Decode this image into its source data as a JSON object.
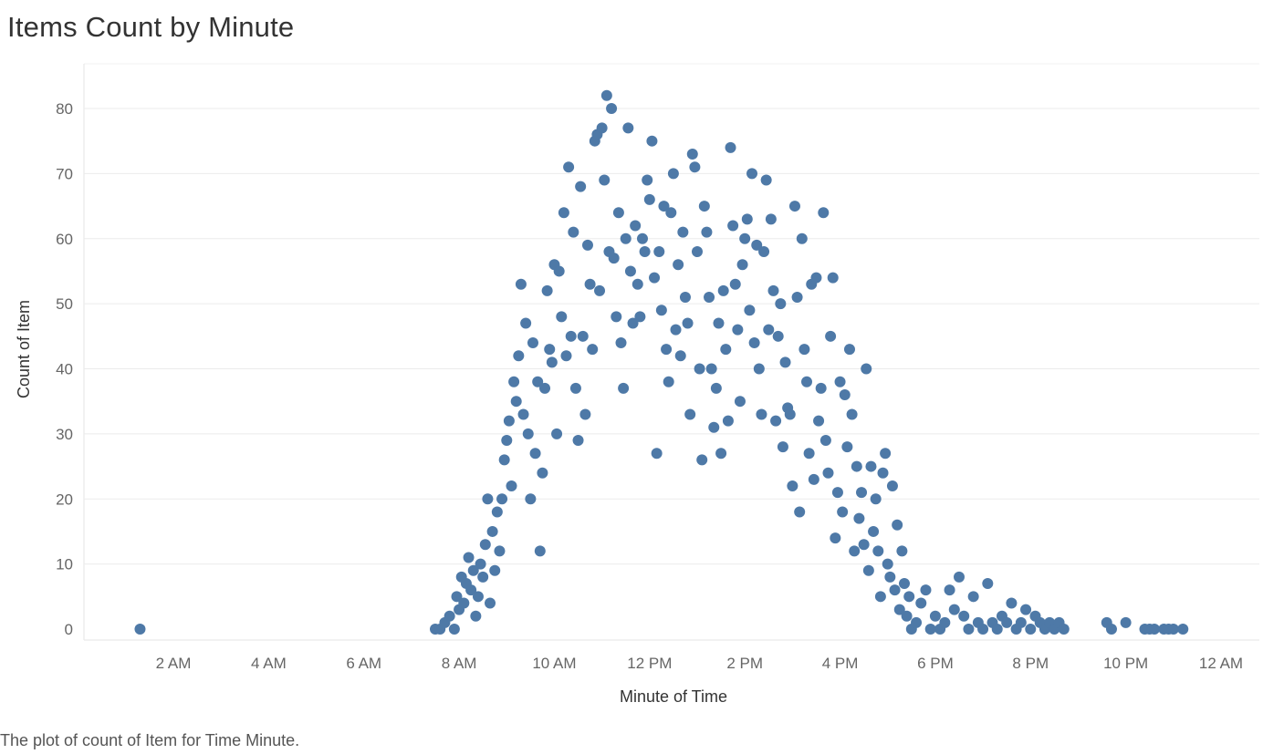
{
  "title": "Items Count by Minute",
  "caption": "The plot of count of Item for Time Minute.",
  "chart_data": {
    "type": "scatter",
    "title": "Items Count by Minute",
    "xlabel": "Minute of Time",
    "ylabel": "Count of Item",
    "x_unit": "hours since midnight",
    "xlim": [
      0,
      24
    ],
    "ylim": [
      0,
      85
    ],
    "x_ticks": [
      {
        "value": 2,
        "label": "2 AM"
      },
      {
        "value": 4,
        "label": "4 AM"
      },
      {
        "value": 6,
        "label": "6 AM"
      },
      {
        "value": 8,
        "label": "8 AM"
      },
      {
        "value": 10,
        "label": "10 AM"
      },
      {
        "value": 12,
        "label": "12 PM"
      },
      {
        "value": 14,
        "label": "2 PM"
      },
      {
        "value": 16,
        "label": "4 PM"
      },
      {
        "value": 18,
        "label": "6 PM"
      },
      {
        "value": 20,
        "label": "8 PM"
      },
      {
        "value": 22,
        "label": "10 PM"
      },
      {
        "value": 24,
        "label": "12 AM"
      }
    ],
    "y_ticks": [
      0,
      10,
      20,
      30,
      40,
      50,
      60,
      70,
      80
    ],
    "grid": "horizontal",
    "legend": "none",
    "marker_color": "#4e79a7",
    "points": [
      [
        1.3,
        0
      ],
      [
        7.5,
        0
      ],
      [
        7.6,
        0
      ],
      [
        7.7,
        1
      ],
      [
        7.8,
        2
      ],
      [
        7.9,
        0
      ],
      [
        7.95,
        5
      ],
      [
        8.0,
        3
      ],
      [
        8.05,
        8
      ],
      [
        8.1,
        4
      ],
      [
        8.15,
        7
      ],
      [
        8.2,
        11
      ],
      [
        8.25,
        6
      ],
      [
        8.3,
        9
      ],
      [
        8.35,
        2
      ],
      [
        8.4,
        5
      ],
      [
        8.45,
        10
      ],
      [
        8.5,
        8
      ],
      [
        8.55,
        13
      ],
      [
        8.6,
        20
      ],
      [
        8.65,
        4
      ],
      [
        8.7,
        15
      ],
      [
        8.75,
        9
      ],
      [
        8.8,
        18
      ],
      [
        8.85,
        12
      ],
      [
        8.9,
        20
      ],
      [
        8.95,
        26
      ],
      [
        9.0,
        29
      ],
      [
        9.05,
        32
      ],
      [
        9.1,
        22
      ],
      [
        9.15,
        38
      ],
      [
        9.2,
        35
      ],
      [
        9.25,
        42
      ],
      [
        9.3,
        53
      ],
      [
        9.35,
        33
      ],
      [
        9.4,
        47
      ],
      [
        9.45,
        30
      ],
      [
        9.5,
        20
      ],
      [
        9.55,
        44
      ],
      [
        9.6,
        27
      ],
      [
        9.65,
        38
      ],
      [
        9.7,
        12
      ],
      [
        9.75,
        24
      ],
      [
        9.8,
        37
      ],
      [
        9.85,
        52
      ],
      [
        9.9,
        43
      ],
      [
        9.95,
        41
      ],
      [
        10.0,
        56
      ],
      [
        10.05,
        30
      ],
      [
        10.1,
        55
      ],
      [
        10.15,
        48
      ],
      [
        10.2,
        64
      ],
      [
        10.25,
        42
      ],
      [
        10.3,
        71
      ],
      [
        10.35,
        45
      ],
      [
        10.4,
        61
      ],
      [
        10.45,
        37
      ],
      [
        10.5,
        29
      ],
      [
        10.55,
        68
      ],
      [
        10.6,
        45
      ],
      [
        10.65,
        33
      ],
      [
        10.7,
        59
      ],
      [
        10.75,
        53
      ],
      [
        10.8,
        43
      ],
      [
        10.85,
        75
      ],
      [
        10.9,
        76
      ],
      [
        10.95,
        52
      ],
      [
        11.0,
        77
      ],
      [
        11.05,
        69
      ],
      [
        11.1,
        82
      ],
      [
        11.15,
        58
      ],
      [
        11.2,
        80
      ],
      [
        11.25,
        57
      ],
      [
        11.3,
        48
      ],
      [
        11.35,
        64
      ],
      [
        11.4,
        44
      ],
      [
        11.45,
        37
      ],
      [
        11.5,
        60
      ],
      [
        11.55,
        77
      ],
      [
        11.6,
        55
      ],
      [
        11.65,
        47
      ],
      [
        11.7,
        62
      ],
      [
        11.75,
        53
      ],
      [
        11.8,
        48
      ],
      [
        11.85,
        60
      ],
      [
        11.9,
        58
      ],
      [
        11.95,
        69
      ],
      [
        12.0,
        66
      ],
      [
        12.05,
        75
      ],
      [
        12.1,
        54
      ],
      [
        12.15,
        27
      ],
      [
        12.2,
        58
      ],
      [
        12.25,
        49
      ],
      [
        12.3,
        65
      ],
      [
        12.35,
        43
      ],
      [
        12.4,
        38
      ],
      [
        12.45,
        64
      ],
      [
        12.5,
        70
      ],
      [
        12.55,
        46
      ],
      [
        12.6,
        56
      ],
      [
        12.65,
        42
      ],
      [
        12.7,
        61
      ],
      [
        12.75,
        51
      ],
      [
        12.8,
        47
      ],
      [
        12.85,
        33
      ],
      [
        12.9,
        73
      ],
      [
        12.95,
        71
      ],
      [
        13.0,
        58
      ],
      [
        13.05,
        40
      ],
      [
        13.1,
        26
      ],
      [
        13.15,
        65
      ],
      [
        13.2,
        61
      ],
      [
        13.25,
        51
      ],
      [
        13.3,
        40
      ],
      [
        13.35,
        31
      ],
      [
        13.4,
        37
      ],
      [
        13.45,
        47
      ],
      [
        13.5,
        27
      ],
      [
        13.55,
        52
      ],
      [
        13.6,
        43
      ],
      [
        13.65,
        32
      ],
      [
        13.7,
        74
      ],
      [
        13.75,
        62
      ],
      [
        13.8,
        53
      ],
      [
        13.85,
        46
      ],
      [
        13.9,
        35
      ],
      [
        13.95,
        56
      ],
      [
        14.0,
        60
      ],
      [
        14.05,
        63
      ],
      [
        14.1,
        49
      ],
      [
        14.15,
        70
      ],
      [
        14.2,
        44
      ],
      [
        14.25,
        59
      ],
      [
        14.3,
        40
      ],
      [
        14.35,
        33
      ],
      [
        14.4,
        58
      ],
      [
        14.45,
        69
      ],
      [
        14.5,
        46
      ],
      [
        14.55,
        63
      ],
      [
        14.6,
        52
      ],
      [
        14.65,
        32
      ],
      [
        14.7,
        45
      ],
      [
        14.75,
        50
      ],
      [
        14.8,
        28
      ],
      [
        14.85,
        41
      ],
      [
        14.9,
        34
      ],
      [
        14.95,
        33
      ],
      [
        15.0,
        22
      ],
      [
        15.05,
        65
      ],
      [
        15.1,
        51
      ],
      [
        15.15,
        18
      ],
      [
        15.2,
        60
      ],
      [
        15.25,
        43
      ],
      [
        15.3,
        38
      ],
      [
        15.35,
        27
      ],
      [
        15.4,
        53
      ],
      [
        15.45,
        23
      ],
      [
        15.5,
        54
      ],
      [
        15.55,
        32
      ],
      [
        15.6,
        37
      ],
      [
        15.65,
        64
      ],
      [
        15.7,
        29
      ],
      [
        15.75,
        24
      ],
      [
        15.8,
        45
      ],
      [
        15.85,
        54
      ],
      [
        15.9,
        14
      ],
      [
        15.95,
        21
      ],
      [
        16.0,
        38
      ],
      [
        16.05,
        18
      ],
      [
        16.1,
        36
      ],
      [
        16.15,
        28
      ],
      [
        16.2,
        43
      ],
      [
        16.25,
        33
      ],
      [
        16.3,
        12
      ],
      [
        16.35,
        25
      ],
      [
        16.4,
        17
      ],
      [
        16.45,
        21
      ],
      [
        16.5,
        13
      ],
      [
        16.55,
        40
      ],
      [
        16.6,
        9
      ],
      [
        16.65,
        25
      ],
      [
        16.7,
        15
      ],
      [
        16.75,
        20
      ],
      [
        16.8,
        12
      ],
      [
        16.85,
        5
      ],
      [
        16.9,
        24
      ],
      [
        16.95,
        27
      ],
      [
        17.0,
        10
      ],
      [
        17.05,
        8
      ],
      [
        17.1,
        22
      ],
      [
        17.15,
        6
      ],
      [
        17.2,
        16
      ],
      [
        17.25,
        3
      ],
      [
        17.3,
        12
      ],
      [
        17.35,
        7
      ],
      [
        17.4,
        2
      ],
      [
        17.45,
        5
      ],
      [
        17.5,
        0
      ],
      [
        17.6,
        1
      ],
      [
        17.7,
        4
      ],
      [
        17.8,
        6
      ],
      [
        17.9,
        0
      ],
      [
        18.0,
        2
      ],
      [
        18.1,
        0
      ],
      [
        18.2,
        1
      ],
      [
        18.3,
        6
      ],
      [
        18.4,
        3
      ],
      [
        18.5,
        8
      ],
      [
        18.6,
        2
      ],
      [
        18.7,
        0
      ],
      [
        18.8,
        5
      ],
      [
        18.9,
        1
      ],
      [
        19.0,
        0
      ],
      [
        19.1,
        7
      ],
      [
        19.2,
        1
      ],
      [
        19.3,
        0
      ],
      [
        19.4,
        2
      ],
      [
        19.5,
        1
      ],
      [
        19.6,
        4
      ],
      [
        19.7,
        0
      ],
      [
        19.8,
        1
      ],
      [
        19.9,
        3
      ],
      [
        20.0,
        0
      ],
      [
        20.1,
        2
      ],
      [
        20.2,
        1
      ],
      [
        20.3,
        0
      ],
      [
        20.4,
        1
      ],
      [
        20.5,
        0
      ],
      [
        20.6,
        1
      ],
      [
        20.7,
        0
      ],
      [
        21.6,
        1
      ],
      [
        21.7,
        0
      ],
      [
        22.0,
        1
      ],
      [
        22.4,
        0
      ],
      [
        22.5,
        0
      ],
      [
        22.6,
        0
      ],
      [
        22.8,
        0
      ],
      [
        22.9,
        0
      ],
      [
        23.0,
        0
      ],
      [
        23.2,
        0
      ]
    ]
  }
}
